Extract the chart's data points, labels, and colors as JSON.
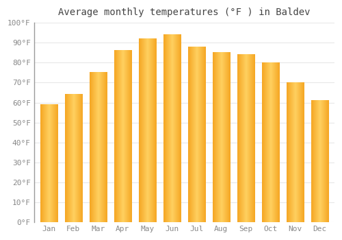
{
  "title": "Average monthly temperatures (°F ) in Baldev",
  "months": [
    "Jan",
    "Feb",
    "Mar",
    "Apr",
    "May",
    "Jun",
    "Jul",
    "Aug",
    "Sep",
    "Oct",
    "Nov",
    "Dec"
  ],
  "values": [
    59,
    64,
    75,
    86,
    92,
    94,
    88,
    85,
    84,
    80,
    70,
    61
  ],
  "bar_color_left": "#F5A623",
  "bar_color_center": "#FFD060",
  "bar_color_right": "#F5A623",
  "ylim": [
    0,
    100
  ],
  "yticks": [
    0,
    10,
    20,
    30,
    40,
    50,
    60,
    70,
    80,
    90,
    100
  ],
  "ytick_labels": [
    "0°F",
    "10°F",
    "20°F",
    "30°F",
    "40°F",
    "50°F",
    "60°F",
    "70°F",
    "80°F",
    "90°F",
    "100°F"
  ],
  "background_color": "#FFFFFF",
  "plot_bg_color": "#FFFFFF",
  "grid_color": "#E8E8E8",
  "title_fontsize": 10,
  "tick_fontsize": 8,
  "tick_color": "#888888",
  "title_color": "#444444",
  "font_family": "monospace",
  "bar_width": 0.7,
  "figsize": [
    5.0,
    3.5
  ],
  "dpi": 100
}
